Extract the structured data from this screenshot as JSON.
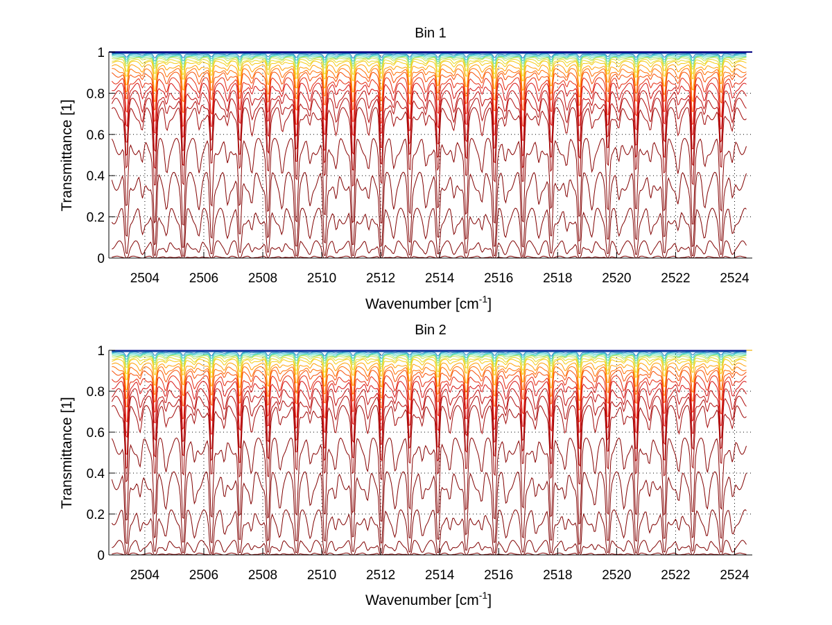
{
  "chart_data": [
    {
      "type": "line",
      "title": "Bin 1",
      "xlabel": "Wavenumber [cm^-1]",
      "xlabel_base": "Wavenumber [cm",
      "xlabel_sup": "-1",
      "xlabel_close": "]",
      "ylabel": "Transmittance [1]",
      "xlim": [
        2502.78,
        2524.6
      ],
      "ylim": [
        0,
        1
      ],
      "xticks": [
        2504,
        2506,
        2508,
        2510,
        2512,
        2514,
        2516,
        2518,
        2520,
        2522,
        2524
      ],
      "xtick_labels": [
        "2504",
        "2506",
        "2508",
        "2510",
        "2512",
        "2514",
        "2516",
        "2518",
        "2520",
        "2522",
        "2524"
      ],
      "yticks": [
        0,
        0.2,
        0.4,
        0.6,
        0.8,
        1
      ],
      "ytick_labels": [
        "0",
        "0.2",
        "0.4",
        "0.6",
        "0.8",
        "1"
      ],
      "grid": "dotted",
      "legend": "none",
      "series_description": "Family of transmittance spectra for increasing optical depth; colors run from blue (T≈1) through cyan/yellow/orange to dark red (T≈0)",
      "baseline_levels": [
        1.0,
        1.0,
        0.999,
        0.998,
        0.997,
        0.995,
        0.993,
        0.99,
        0.985,
        0.98,
        0.975,
        0.97,
        0.96,
        0.95,
        0.93,
        0.91,
        0.89,
        0.86,
        0.83,
        0.79,
        0.75,
        0.7,
        0.54,
        0.37,
        0.2,
        0.06,
        0.005
      ],
      "line_spacing_cm-1": 0.96,
      "first_line_center": 2503.38,
      "line_end": 2524.4
    },
    {
      "type": "line",
      "title": "Bin 2",
      "xlabel": "Wavenumber [cm^-1]",
      "xlabel_base": "Wavenumber [cm",
      "xlabel_sup": "-1",
      "xlabel_close": "]",
      "ylabel": "Transmittance [1]",
      "xlim": [
        2502.78,
        2524.6
      ],
      "ylim": [
        0,
        1
      ],
      "xticks": [
        2504,
        2506,
        2508,
        2510,
        2512,
        2514,
        2516,
        2518,
        2520,
        2522,
        2524
      ],
      "xtick_labels": [
        "2504",
        "2506",
        "2508",
        "2510",
        "2512",
        "2514",
        "2516",
        "2518",
        "2520",
        "2522",
        "2524"
      ],
      "yticks": [
        0,
        0.2,
        0.4,
        0.6,
        0.8,
        1
      ],
      "ytick_labels": [
        "0",
        "0.2",
        "0.4",
        "0.6",
        "0.8",
        "1"
      ],
      "grid": "dotted",
      "legend": "none",
      "series_description": "Family of transmittance spectra for increasing optical depth; colors run from cyan/yellow (T≈1) through orange to dark red (T≈0)",
      "baseline_levels": [
        1.0,
        1.0,
        0.999,
        0.998,
        0.997,
        0.995,
        0.993,
        0.99,
        0.985,
        0.98,
        0.975,
        0.97,
        0.96,
        0.95,
        0.93,
        0.91,
        0.89,
        0.86,
        0.83,
        0.79,
        0.75,
        0.7,
        0.53,
        0.36,
        0.18,
        0.05,
        0.005
      ],
      "line_spacing_cm-1": 0.96,
      "first_line_center": 2503.38,
      "line_end": 2524.4
    }
  ]
}
